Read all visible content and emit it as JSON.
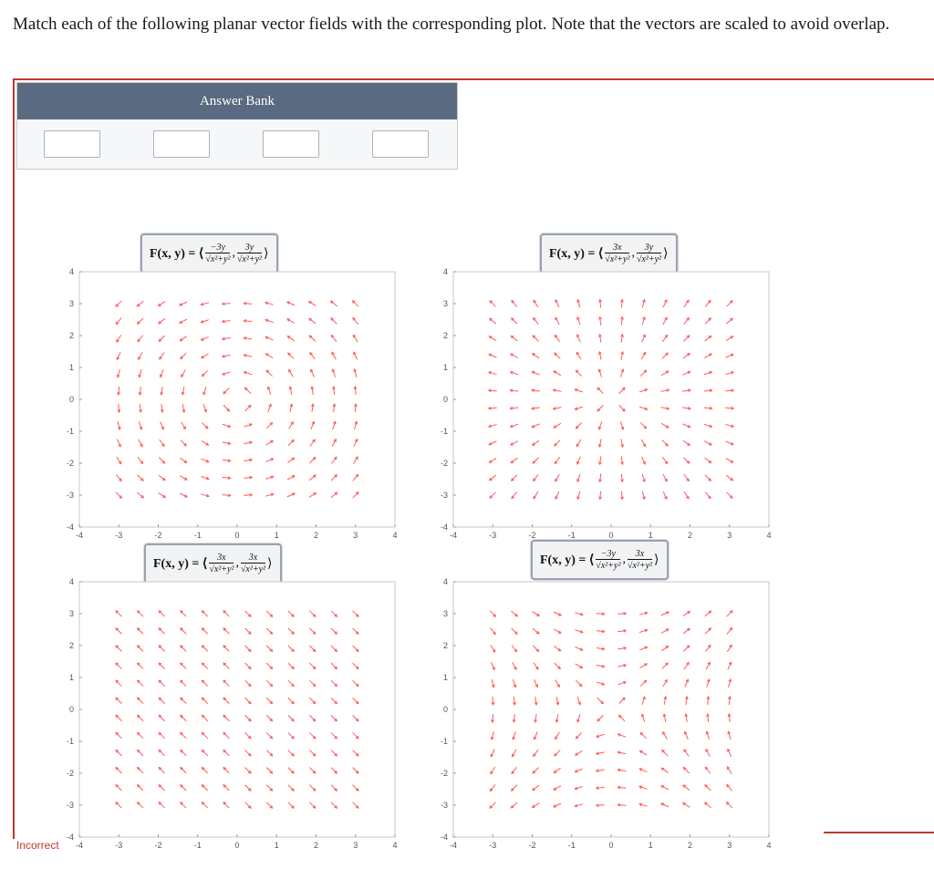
{
  "question": {
    "prompt": "Match each of the following planar vector fields with the corresponding plot. Note that the vectors are scaled to avoid overlap."
  },
  "answer_bank": {
    "title": "Answer Bank",
    "slots": [
      "",
      "",
      "",
      ""
    ]
  },
  "status": {
    "label": "Incorrect"
  },
  "colors": {
    "arrow": "#ff5a5a",
    "header": "#5a6a80",
    "status": "#c0392b"
  },
  "plots": [
    {
      "lead": "F(x, y) = ⟨",
      "p_num": "−3y",
      "p_den": "√x²+y²",
      "q_num": "3y",
      "q_den": "√x²+y²",
      "tail": "⟩"
    },
    {
      "lead": "F(x, y) = ⟨",
      "p_num": "3x",
      "p_den": "√x²+y²",
      "q_num": "3y",
      "q_den": "√x²+y²",
      "tail": "⟩"
    },
    {
      "lead": "F(x, y) = ⟨",
      "p_num": "3x",
      "p_den": "√x²+y²",
      "q_num": "3x",
      "q_den": "√x²+y²",
      "tail": "⟩"
    },
    {
      "lead": "F(x, y) = ⟨",
      "p_num": "−3y",
      "p_den": "√x²+y²",
      "q_num": "3x",
      "q_den": "√x²+y²",
      "tail": "⟩"
    }
  ],
  "axes": {
    "x_ticks": [
      "-4",
      "-3",
      "-2",
      "-1",
      "0",
      "1",
      "2",
      "3",
      "4"
    ],
    "y_ticks": [
      "4",
      "3",
      "2",
      "1",
      "0",
      "-1",
      "-2",
      "-3",
      "-4"
    ],
    "xlim": [
      -4,
      4
    ],
    "ylim": [
      -4,
      4
    ]
  }
}
